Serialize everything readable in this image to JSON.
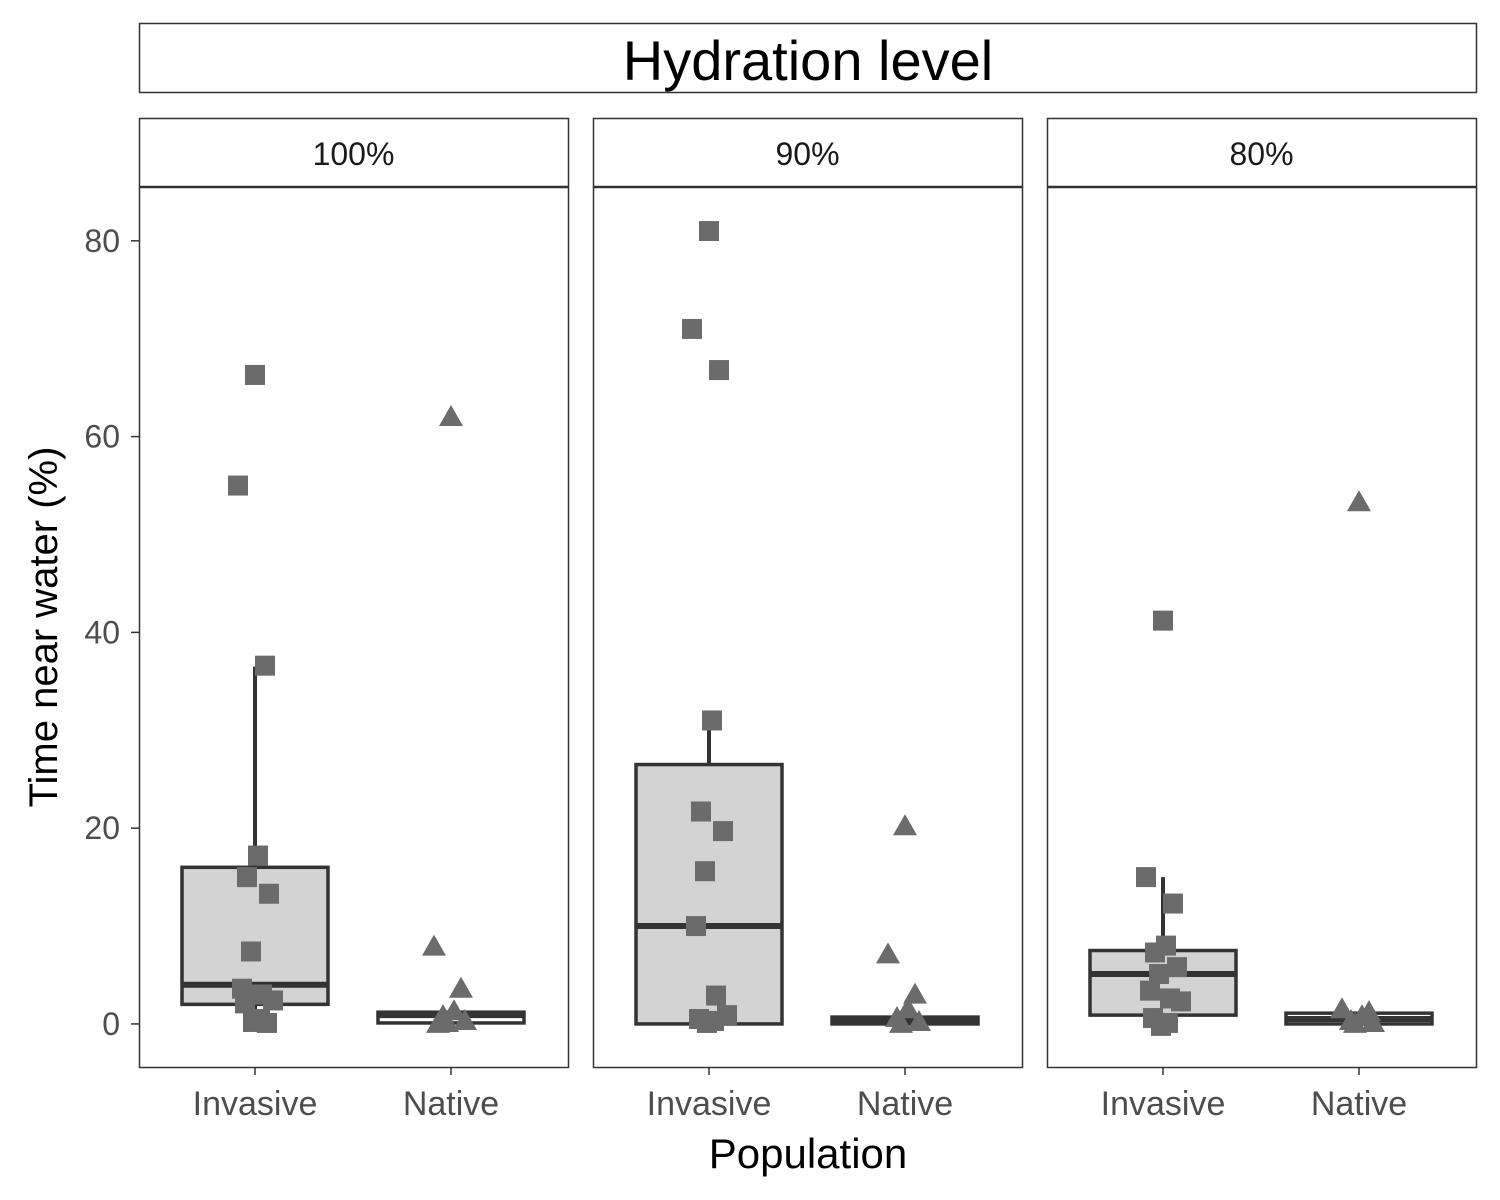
{
  "chart_data": {
    "type": "box",
    "title": "Hydration level",
    "xlabel": "Population",
    "ylabel": "Time near water (%)",
    "ylim": [
      -4.4,
      85.5
    ],
    "yticks": [
      0,
      20,
      40,
      60,
      80
    ],
    "categories": [
      "Invasive",
      "Native"
    ],
    "legend": "none",
    "grid": false,
    "facets": [
      {
        "label": "100%",
        "groups": [
          {
            "category": "Invasive",
            "box": {
              "q1": 2.0,
              "median": 4.0,
              "q3": 16.0,
              "whisker_low": 0,
              "whisker_high": 36.5
            },
            "fill": "#d3d3d3",
            "marker": "square",
            "points": [
              66.3,
              55.0,
              36.6,
              17.2,
              15.0,
              13.3,
              7.4,
              3.6,
              3.0,
              2.4,
              2.1,
              0.5,
              0.2,
              0.1
            ]
          },
          {
            "category": "Native",
            "box": {
              "q1": 0.1,
              "median": 0.9,
              "q3": 1.2,
              "whisker_low": 0,
              "whisker_high": 1.2
            },
            "fill": "#ffffff",
            "marker": "triangle",
            "points": [
              62.0,
              7.9,
              3.6,
              1.3,
              0.8,
              0.3,
              0.1,
              0.0
            ]
          }
        ]
      },
      {
        "label": "90%",
        "groups": [
          {
            "category": "Invasive",
            "box": {
              "q1": 0.0,
              "median": 10.0,
              "q3": 26.5,
              "whisker_low": 0,
              "whisker_high": 31.0
            },
            "fill": "#d3d3d3",
            "marker": "square",
            "points": [
              81.0,
              71.0,
              66.8,
              31.0,
              21.7,
              19.7,
              15.6,
              10.0,
              2.9,
              0.9,
              0.5,
              0.3,
              0.1
            ]
          },
          {
            "category": "Native",
            "box": {
              "q1": 0.0,
              "median": 0.3,
              "q3": 0.7,
              "whisker_low": 0,
              "whisker_high": 0.7
            },
            "fill": "#ffffff",
            "marker": "triangle",
            "points": [
              20.2,
              7.1,
              3.0,
              1.5,
              0.6,
              0.2,
              0.0
            ]
          }
        ]
      },
      {
        "label": "80%",
        "groups": [
          {
            "category": "Invasive",
            "box": {
              "q1": 0.9,
              "median": 5.1,
              "q3": 7.5,
              "whisker_low": 0,
              "whisker_high": 15.0
            },
            "fill": "#d3d3d3",
            "marker": "square",
            "points": [
              41.2,
              15.0,
              12.3,
              8.0,
              7.3,
              5.8,
              5.1,
              3.4,
              2.6,
              2.3,
              0.6,
              0.1,
              -0.2
            ]
          },
          {
            "category": "Native",
            "box": {
              "q1": 0.0,
              "median": 0.5,
              "q3": 1.1,
              "whisker_low": 0,
              "whisker_high": 1.1
            },
            "fill": "#ffffff",
            "marker": "triangle",
            "points": [
              53.3,
              1.5,
              1.2,
              0.8,
              0.3,
              0.1,
              0.0
            ]
          }
        ]
      }
    ]
  }
}
